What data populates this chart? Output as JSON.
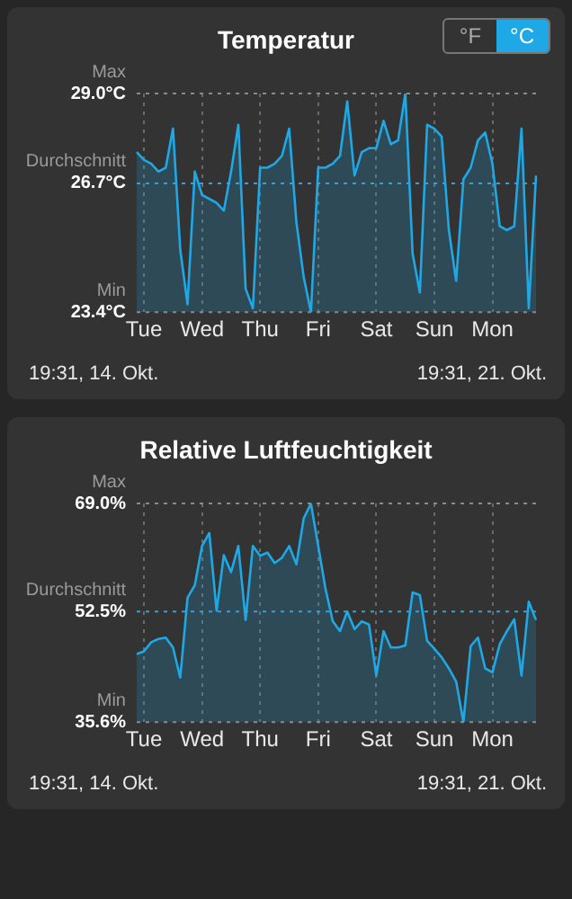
{
  "chart_data": [
    {
      "type": "area",
      "title": "Temperatur",
      "color": "#1fa8e6",
      "annotations": [
        "°F",
        "°C",
        "19:31, 14. Okt.",
        "19:31, 21. Okt."
      ],
      "categories": [
        null,
        "Tue",
        null,
        null,
        null,
        null,
        null,
        null,
        null,
        "Wed",
        null,
        null,
        null,
        null,
        null,
        null,
        null,
        "Thu",
        null,
        null,
        null,
        null,
        null,
        null,
        null,
        "Fri",
        null,
        null,
        null,
        null,
        null,
        null,
        null,
        "Sat",
        null,
        null,
        null,
        null,
        null,
        null,
        null,
        "Sun",
        null,
        null,
        null,
        null,
        null,
        null,
        null,
        "Mon",
        null,
        null,
        null,
        null,
        null,
        null
      ],
      "values": [
        27.5,
        27.3,
        27.2,
        27.0,
        27.1,
        28.1,
        25.0,
        23.6,
        27.0,
        26.4,
        26.3,
        26.2,
        26.0,
        27.0,
        28.2,
        24.0,
        23.5,
        27.1,
        27.1,
        27.2,
        27.4,
        28.1,
        25.7,
        24.3,
        23.4,
        27.1,
        27.1,
        27.2,
        27.4,
        28.8,
        26.9,
        27.5,
        27.6,
        27.6,
        28.3,
        27.7,
        27.8,
        29.0,
        24.9,
        23.9,
        28.2,
        28.1,
        27.9,
        25.5,
        24.2,
        26.8,
        27.1,
        27.8,
        28.0,
        27.2,
        25.6,
        25.5,
        25.6,
        28.1,
        23.5,
        26.9
      ],
      "ylim": [
        23.4,
        29.0
      ],
      "yticks": [
        {
          "value": 23.4,
          "label": "23.4°C"
        },
        {
          "value": 26.7,
          "label": "26.7°C"
        },
        {
          "value": 29.0,
          "label": "29.0°C"
        }
      ],
      "ref_lines": [
        {
          "axis": "y",
          "value": 29.0,
          "label": "Max",
          "color": "#8a8a8a",
          "line_style": "dotted"
        },
        {
          "axis": "y",
          "value": 26.7,
          "label": "Durchschnitt",
          "color": "#3aa0d0",
          "line_style": "dotted"
        },
        {
          "axis": "y",
          "value": 23.4,
          "label": "Min",
          "color": "#8a8a8a",
          "line_style": "dotted"
        }
      ],
      "grid": "x"
    },
    {
      "type": "area",
      "title": "Relative Luftfeuchtigkeit",
      "color": "#1fa8e6",
      "annotations": [
        "19:31, 14. Okt.",
        "19:31, 21. Okt."
      ],
      "categories": [
        null,
        "Tue",
        null,
        null,
        null,
        null,
        null,
        null,
        null,
        "Wed",
        null,
        null,
        null,
        null,
        null,
        null,
        null,
        "Thu",
        null,
        null,
        null,
        null,
        null,
        null,
        null,
        "Fri",
        null,
        null,
        null,
        null,
        null,
        null,
        null,
        "Sat",
        null,
        null,
        null,
        null,
        null,
        null,
        null,
        "Sun",
        null,
        null,
        null,
        null,
        null,
        null,
        null,
        "Mon",
        null,
        null,
        null,
        null,
        null,
        null
      ],
      "values": [
        46.0,
        46.4,
        47.8,
        48.3,
        48.5,
        47.0,
        42.4,
        54.6,
        56.5,
        62.5,
        64.5,
        52.6,
        61.1,
        58.5,
        62.5,
        51.2,
        62.5,
        61.0,
        61.5,
        59.9,
        60.7,
        62.5,
        59.7,
        66.7,
        69.0,
        62.5,
        56.0,
        51.0,
        49.5,
        52.5,
        49.8,
        51.0,
        50.5,
        42.7,
        49.5,
        47.0,
        47.0,
        47.3,
        55.4,
        55.0,
        48.0,
        46.8,
        45.5,
        43.8,
        41.8,
        35.6,
        47.2,
        48.5,
        43.8,
        43.2,
        47.5,
        49.5,
        51.3,
        42.7,
        54.0,
        51.2
      ],
      "ylim": [
        35.6,
        69.0
      ],
      "yticks": [
        {
          "value": 35.6,
          "label": "35.6%"
        },
        {
          "value": 52.5,
          "label": "52.5%"
        },
        {
          "value": 69.0,
          "label": "69.0%"
        }
      ],
      "ref_lines": [
        {
          "axis": "y",
          "value": 69.0,
          "label": "Max",
          "color": "#8a8a8a",
          "line_style": "dotted"
        },
        {
          "axis": "y",
          "value": 52.5,
          "label": "Durchschnitt",
          "color": "#3aa0d0",
          "line_style": "dotted"
        },
        {
          "axis": "y",
          "value": 35.6,
          "label": "Min",
          "color": "#8a8a8a",
          "line_style": "dotted"
        }
      ],
      "grid": "x"
    }
  ]
}
